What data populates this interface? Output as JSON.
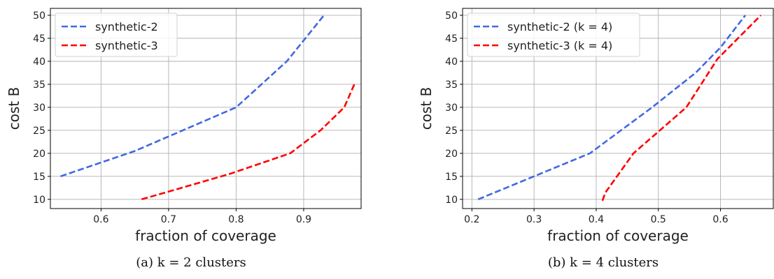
{
  "chart_data": [
    {
      "type": "line",
      "xlabel": "fraction of coverage",
      "ylabel": "cost B",
      "xlim": [
        0.525,
        0.985
      ],
      "ylim": [
        8,
        51.5
      ],
      "xticks": [
        0.6,
        0.7,
        0.8,
        0.9
      ],
      "yticks": [
        10,
        15,
        20,
        25,
        30,
        35,
        40,
        45,
        50
      ],
      "xtick_labels": [
        "0.6",
        "0.7",
        "0.8",
        "0.9"
      ],
      "ytick_labels": [
        "10",
        "15",
        "20",
        "25",
        "30",
        "35",
        "40",
        "45",
        "50"
      ],
      "grid": true,
      "legend_placement": "top-left",
      "caption": "(a) k = 2 clusters",
      "series": [
        {
          "name": "synthetic-2",
          "color": "#4169e1",
          "style": "dashed",
          "x": [
            0.54,
            0.65,
            0.8,
            0.875,
            0.93
          ],
          "y": [
            15,
            20.5,
            30,
            40,
            50
          ]
        },
        {
          "name": "synthetic-3",
          "color": "#ff0000",
          "style": "dashed",
          "x": [
            0.66,
            0.79,
            0.88,
            0.925,
            0.96,
            0.975
          ],
          "y": [
            10,
            15.5,
            20,
            25,
            30,
            35
          ]
        }
      ]
    },
    {
      "type": "line",
      "xlabel": "fraction of coverage",
      "ylabel": "cost B",
      "xlim": [
        0.185,
        0.685
      ],
      "ylim": [
        8,
        51.5
      ],
      "xticks": [
        0.2,
        0.3,
        0.4,
        0.5,
        0.6
      ],
      "yticks": [
        10,
        15,
        20,
        25,
        30,
        35,
        40,
        45,
        50
      ],
      "xtick_labels": [
        "0.2",
        "0.3",
        "0.4",
        "0.5",
        "0.6"
      ],
      "ytick_labels": [
        "10",
        "15",
        "20",
        "25",
        "30",
        "35",
        "40",
        "45",
        "50"
      ],
      "grid": true,
      "legend_placement": "top-left",
      "caption": "(b) k = 4 clusters",
      "series": [
        {
          "name": "synthetic-2 (k = 4)",
          "color": "#4169e1",
          "style": "dashed",
          "x": [
            0.21,
            0.39,
            0.49,
            0.56,
            0.6,
            0.64
          ],
          "y": [
            10,
            20,
            30,
            37.5,
            43,
            50
          ]
        },
        {
          "name": "synthetic-3 (k = 4)",
          "color": "#ff0000",
          "style": "dashed",
          "x": [
            0.41,
            0.415,
            0.46,
            0.545,
            0.595,
            0.665
          ],
          "y": [
            9.7,
            11.5,
            20,
            30,
            40.5,
            50
          ]
        }
      ]
    }
  ]
}
